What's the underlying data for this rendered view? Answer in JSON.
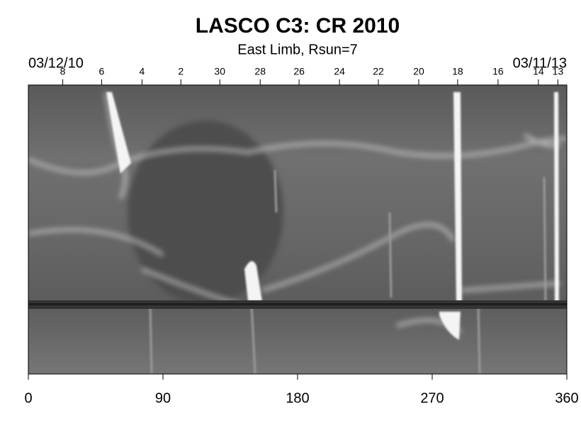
{
  "chart_data": {
    "type": "heatmap",
    "title": "LASCO C3: CR 2010",
    "subtitle": "East Limb, Rsun=7",
    "start_date": "03/12/10",
    "end_date": "03/11/13",
    "xlim": [
      0,
      360
    ],
    "xticks": [
      0,
      90,
      180,
      270,
      360
    ],
    "x2ticks": [
      {
        "value": 23,
        "label": "8"
      },
      {
        "value": 49,
        "label": "6"
      },
      {
        "value": 76,
        "label": "4"
      },
      {
        "value": 102,
        "label": "2"
      },
      {
        "value": 128,
        "label": "30"
      },
      {
        "value": 155,
        "label": "28"
      },
      {
        "value": 181,
        "label": "26"
      },
      {
        "value": 208,
        "label": "24"
      },
      {
        "value": 234,
        "label": "22"
      },
      {
        "value": 261,
        "label": "20"
      },
      {
        "value": 287,
        "label": "18"
      },
      {
        "value": 314,
        "label": "16"
      },
      {
        "value": 341,
        "label": "14"
      },
      {
        "value": 354,
        "label": "13"
      }
    ]
  }
}
